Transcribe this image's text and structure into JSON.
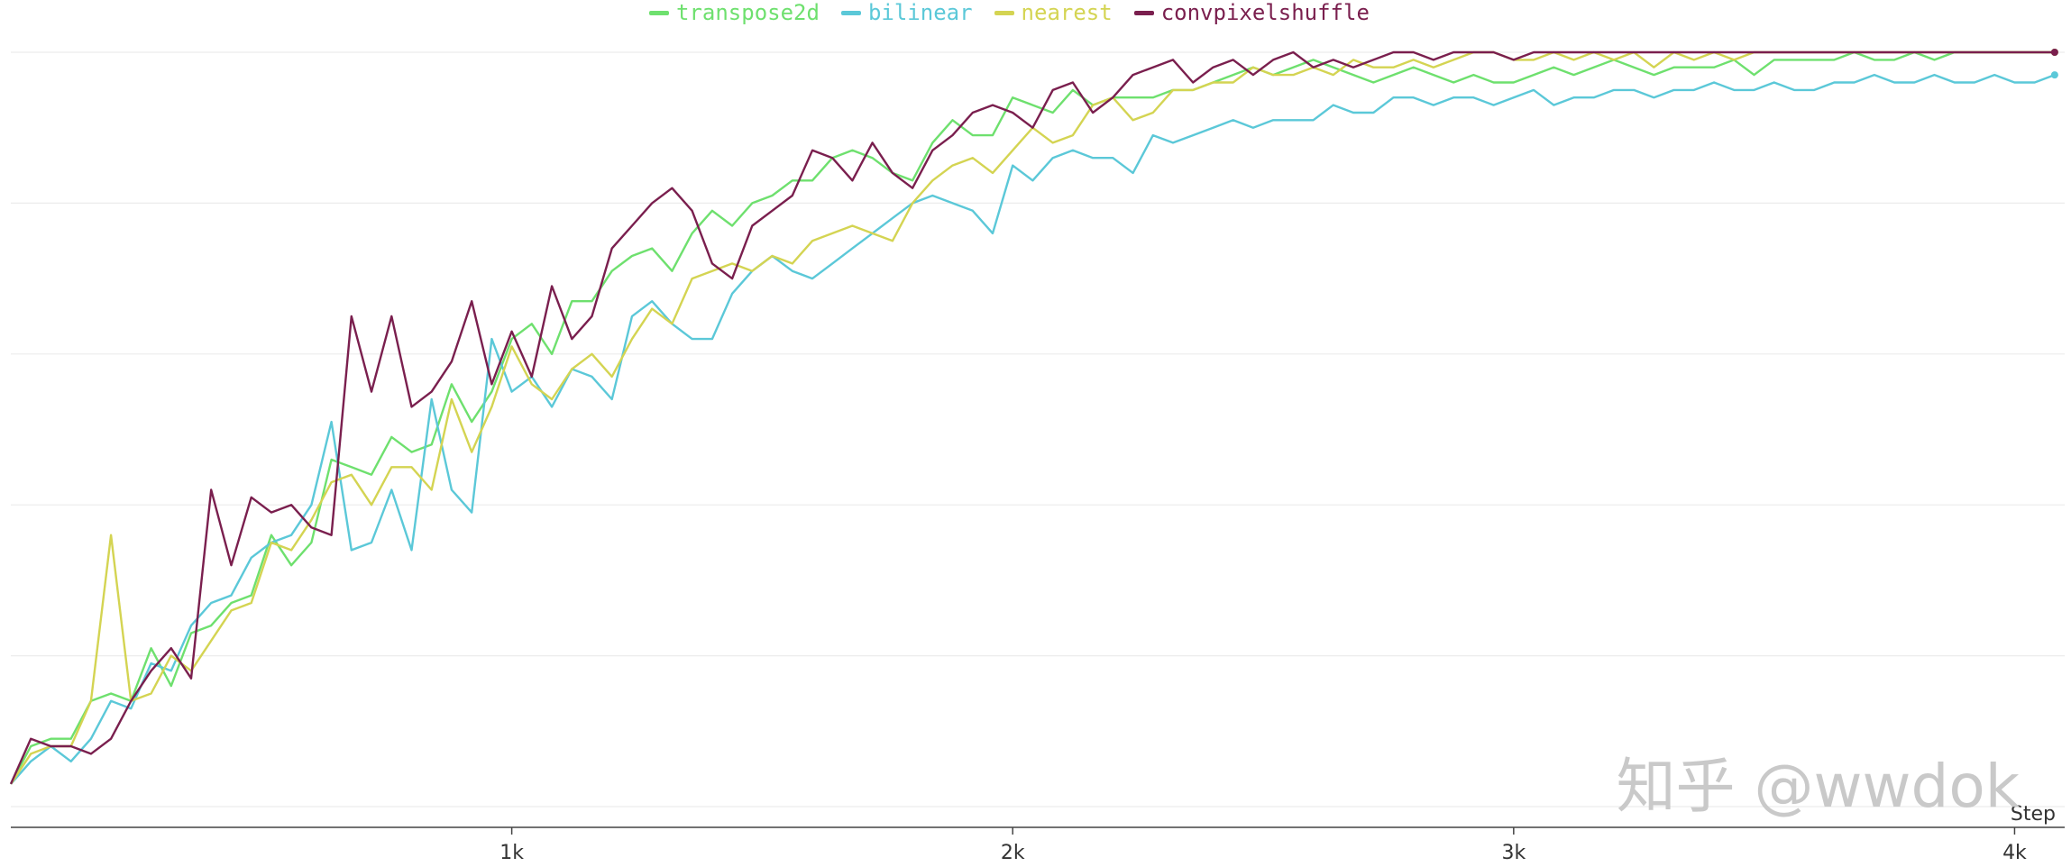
{
  "chart_data": {
    "type": "line",
    "title": "",
    "xlabel": "Step",
    "ylabel": "",
    "xlim": [
      0,
      4100
    ],
    "ylim": [
      0,
      1
    ],
    "y_units": "fraction of plot height (y-axis tick values not shown)",
    "grid": "horizontal",
    "legend_position": "top",
    "x_ticks": [
      {
        "value": 1000,
        "label": "1k"
      },
      {
        "value": 2000,
        "label": "2k"
      },
      {
        "value": 3000,
        "label": "3k"
      },
      {
        "value": 4000,
        "label": "4k"
      }
    ],
    "x": [
      0,
      40,
      80,
      120,
      160,
      200,
      240,
      280,
      320,
      360,
      400,
      440,
      480,
      520,
      560,
      600,
      640,
      680,
      720,
      760,
      800,
      840,
      880,
      920,
      960,
      1000,
      1040,
      1080,
      1120,
      1160,
      1200,
      1240,
      1280,
      1320,
      1360,
      1400,
      1440,
      1480,
      1520,
      1560,
      1600,
      1640,
      1680,
      1720,
      1760,
      1800,
      1840,
      1880,
      1920,
      1960,
      2000,
      2040,
      2080,
      2120,
      2160,
      2200,
      2240,
      2280,
      2320,
      2360,
      2400,
      2440,
      2480,
      2520,
      2560,
      2600,
      2640,
      2680,
      2720,
      2760,
      2800,
      2840,
      2880,
      2920,
      2960,
      3000,
      3040,
      3080,
      3120,
      3160,
      3200,
      3240,
      3280,
      3320,
      3360,
      3400,
      3440,
      3480,
      3520,
      3560,
      3600,
      3640,
      3680,
      3720,
      3760,
      3800,
      3840,
      3880,
      3920,
      3960,
      4000,
      4040,
      4080
    ],
    "series": [
      {
        "name": "transpose2d",
        "color": "#6ee06e",
        "values": [
          0.03,
          0.08,
          0.09,
          0.09,
          0.14,
          0.15,
          0.14,
          0.21,
          0.16,
          0.23,
          0.24,
          0.27,
          0.28,
          0.36,
          0.32,
          0.35,
          0.46,
          0.45,
          0.44,
          0.49,
          0.47,
          0.48,
          0.56,
          0.51,
          0.55,
          0.62,
          0.64,
          0.6,
          0.67,
          0.67,
          0.71,
          0.73,
          0.74,
          0.71,
          0.76,
          0.79,
          0.77,
          0.8,
          0.81,
          0.83,
          0.83,
          0.86,
          0.87,
          0.86,
          0.84,
          0.83,
          0.88,
          0.91,
          0.89,
          0.89,
          0.94,
          0.93,
          0.92,
          0.95,
          0.93,
          0.94,
          0.94,
          0.94,
          0.95,
          0.95,
          0.96,
          0.97,
          0.98,
          0.97,
          0.98,
          0.99,
          0.98,
          0.97,
          0.96,
          0.97,
          0.98,
          0.97,
          0.96,
          0.97,
          0.96,
          0.96,
          0.97,
          0.98,
          0.97,
          0.98,
          0.99,
          0.98,
          0.97,
          0.98,
          0.98,
          0.98,
          0.99,
          0.97,
          0.99,
          0.99,
          0.99,
          0.99,
          1.0,
          0.99,
          0.99,
          1.0,
          0.99,
          1.0,
          1.0,
          1.0,
          1.0,
          1.0,
          1.0
        ]
      },
      {
        "name": "bilinear",
        "color": "#5bc8d8",
        "values": [
          0.03,
          0.06,
          0.08,
          0.06,
          0.09,
          0.14,
          0.13,
          0.19,
          0.18,
          0.24,
          0.27,
          0.28,
          0.33,
          0.35,
          0.36,
          0.4,
          0.51,
          0.34,
          0.35,
          0.42,
          0.34,
          0.54,
          0.42,
          0.39,
          0.62,
          0.55,
          0.57,
          0.53,
          0.58,
          0.57,
          0.54,
          0.65,
          0.67,
          0.64,
          0.62,
          0.62,
          0.68,
          0.71,
          0.73,
          0.71,
          0.7,
          0.72,
          0.74,
          0.76,
          0.78,
          0.8,
          0.81,
          0.8,
          0.79,
          0.76,
          0.85,
          0.83,
          0.86,
          0.87,
          0.86,
          0.86,
          0.84,
          0.89,
          0.88,
          0.89,
          0.9,
          0.91,
          0.9,
          0.91,
          0.91,
          0.91,
          0.93,
          0.92,
          0.92,
          0.94,
          0.94,
          0.93,
          0.94,
          0.94,
          0.93,
          0.94,
          0.95,
          0.93,
          0.94,
          0.94,
          0.95,
          0.95,
          0.94,
          0.95,
          0.95,
          0.96,
          0.95,
          0.95,
          0.96,
          0.95,
          0.95,
          0.96,
          0.96,
          0.97,
          0.96,
          0.96,
          0.97,
          0.96,
          0.96,
          0.97,
          0.96,
          0.96,
          0.97
        ]
      },
      {
        "name": "nearest",
        "color": "#d4d452",
        "values": [
          0.03,
          0.07,
          0.08,
          0.08,
          0.14,
          0.36,
          0.14,
          0.15,
          0.2,
          0.18,
          0.22,
          0.26,
          0.27,
          0.35,
          0.34,
          0.38,
          0.43,
          0.44,
          0.4,
          0.45,
          0.45,
          0.42,
          0.54,
          0.47,
          0.53,
          0.61,
          0.56,
          0.54,
          0.58,
          0.6,
          0.57,
          0.62,
          0.66,
          0.64,
          0.7,
          0.71,
          0.72,
          0.71,
          0.73,
          0.72,
          0.75,
          0.76,
          0.77,
          0.76,
          0.75,
          0.8,
          0.83,
          0.85,
          0.86,
          0.84,
          0.87,
          0.9,
          0.88,
          0.89,
          0.93,
          0.94,
          0.91,
          0.92,
          0.95,
          0.95,
          0.96,
          0.96,
          0.98,
          0.97,
          0.97,
          0.98,
          0.97,
          0.99,
          0.98,
          0.98,
          0.99,
          0.98,
          0.99,
          1.0,
          1.0,
          0.99,
          0.99,
          1.0,
          0.99,
          1.0,
          0.99,
          1.0,
          0.98,
          1.0,
          0.99,
          1.0,
          0.99,
          1.0,
          1.0,
          1.0,
          1.0,
          1.0,
          1.0,
          1.0,
          1.0,
          1.0,
          1.0,
          1.0,
          1.0,
          1.0,
          1.0,
          1.0,
          1.0
        ]
      },
      {
        "name": "convpixelshuffle",
        "color": "#7a1f4e",
        "values": [
          0.03,
          0.09,
          0.08,
          0.08,
          0.07,
          0.09,
          0.14,
          0.18,
          0.21,
          0.17,
          0.42,
          0.32,
          0.41,
          0.39,
          0.4,
          0.37,
          0.36,
          0.65,
          0.55,
          0.65,
          0.53,
          0.55,
          0.59,
          0.67,
          0.56,
          0.63,
          0.57,
          0.69,
          0.62,
          0.65,
          0.74,
          0.77,
          0.8,
          0.82,
          0.79,
          0.72,
          0.7,
          0.77,
          0.79,
          0.81,
          0.87,
          0.86,
          0.83,
          0.88,
          0.84,
          0.82,
          0.87,
          0.89,
          0.92,
          0.93,
          0.92,
          0.9,
          0.95,
          0.96,
          0.92,
          0.94,
          0.97,
          0.98,
          0.99,
          0.96,
          0.98,
          0.99,
          0.97,
          0.99,
          1.0,
          0.98,
          0.99,
          0.98,
          0.99,
          1.0,
          1.0,
          0.99,
          1.0,
          1.0,
          1.0,
          0.99,
          1.0,
          1.0,
          1.0,
          1.0,
          1.0,
          1.0,
          1.0,
          1.0,
          1.0,
          1.0,
          1.0,
          1.0,
          1.0,
          1.0,
          1.0,
          1.0,
          1.0,
          1.0,
          1.0,
          1.0,
          1.0,
          1.0,
          1.0,
          1.0,
          1.0,
          1.0,
          1.0
        ]
      }
    ]
  },
  "watermark_text": "知乎 @wwdok"
}
